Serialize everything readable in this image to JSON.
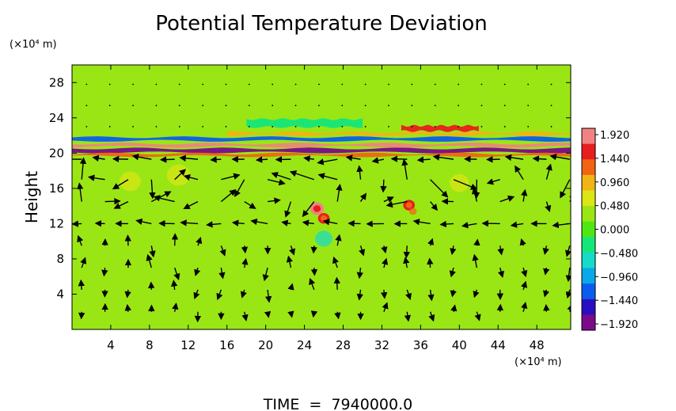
{
  "chart_data": {
    "type": "heatmap",
    "title": "Potential Temperature Deviation",
    "ylabel": "Height",
    "x_unit": "(×10⁴ m)",
    "y_unit": "(×10⁴ m)",
    "x_ticks": [
      4,
      8,
      12,
      16,
      20,
      24,
      28,
      32,
      36,
      40,
      44,
      48
    ],
    "y_ticks": [
      4,
      8,
      12,
      16,
      20,
      24,
      28
    ],
    "xlim": [
      0,
      51.5
    ],
    "ylim": [
      0,
      30
    ],
    "colorbar": {
      "min": -1.92,
      "max": 1.92,
      "ticks": [
        "1.920",
        "1.440",
        "0.960",
        "0.480",
        "0.000",
        "−0.480",
        "−0.960",
        "−1.440",
        "−1.920"
      ],
      "colors": [
        "#7a0a8a",
        "#2a0fc0",
        "#0a5cf0",
        "#0aa8e8",
        "#14dcc8",
        "#14e67a",
        "#50e614",
        "#9ae614",
        "#dce614",
        "#f0b414",
        "#f06414",
        "#e81e1e",
        "#f08282"
      ]
    },
    "background_value": 0.24,
    "features": [
      {
        "kind": "band",
        "y_center": 20.3,
        "thickness": 0.45,
        "value": -1.9,
        "x_start": 0,
        "x_end": 51.5
      },
      {
        "kind": "band",
        "y_center": 20.9,
        "thickness": 0.35,
        "value": 1.8,
        "x_start": 0,
        "x_end": 51.5
      },
      {
        "kind": "band",
        "y_center": 19.8,
        "thickness": 0.3,
        "value": 1.3,
        "x_start": 0,
        "x_end": 51.5
      },
      {
        "kind": "band",
        "y_center": 21.6,
        "thickness": 0.4,
        "value": -1.2,
        "x_start": 0,
        "x_end": 51.5
      },
      {
        "kind": "band",
        "y_center": 22.2,
        "thickness": 0.35,
        "value": 1.0,
        "x_start": 16,
        "x_end": 51.5
      },
      {
        "kind": "band",
        "y_center": 22.8,
        "thickness": 0.6,
        "value": 1.5,
        "x_start": 34,
        "x_end": 42
      },
      {
        "kind": "band",
        "y_center": 23.4,
        "thickness": 0.9,
        "value": -0.4,
        "x_start": 18,
        "x_end": 30
      },
      {
        "kind": "blob",
        "x": 25.3,
        "y": 13.7,
        "r": 0.7,
        "value": 1.9
      },
      {
        "kind": "blob",
        "x": 26.0,
        "y": 12.6,
        "r": 0.6,
        "value": 1.7
      },
      {
        "kind": "blob",
        "x": 34.8,
        "y": 14.1,
        "r": 0.6,
        "value": 1.6
      },
      {
        "kind": "blob",
        "x": 35.2,
        "y": 13.4,
        "r": 0.4,
        "value": 1.2
      },
      {
        "kind": "blob",
        "x": 26.0,
        "y": 10.3,
        "r": 0.9,
        "value": -0.6
      },
      {
        "kind": "blob",
        "x": 11.0,
        "y": 17.5,
        "r": 1.2,
        "value": 0.7
      },
      {
        "kind": "blob",
        "x": 40.0,
        "y": 16.6,
        "r": 1.0,
        "value": 0.6
      },
      {
        "kind": "blob",
        "x": 6.0,
        "y": 16.8,
        "r": 1.1,
        "value": 0.55
      }
    ],
    "wind_vectors": [
      {
        "y": 19.3,
        "rows": "left",
        "length": 1.6
      },
      {
        "y": 17.0,
        "rows": "mixed",
        "length": 2.2
      },
      {
        "y": 14.5,
        "rows": "mixed",
        "length": 1.8
      },
      {
        "y": 12.0,
        "rows": "left",
        "length": 1.4
      },
      {
        "y": 9.5,
        "rows": "vertical",
        "length": 1.2
      },
      {
        "y": 7.0,
        "rows": "vertical",
        "length": 1.3
      },
      {
        "y": 4.5,
        "rows": "vertical",
        "length": 1.2
      },
      {
        "y": 2.0,
        "rows": "vertical",
        "length": 1.0
      }
    ],
    "footer": "TIME  =  7940000.0"
  }
}
